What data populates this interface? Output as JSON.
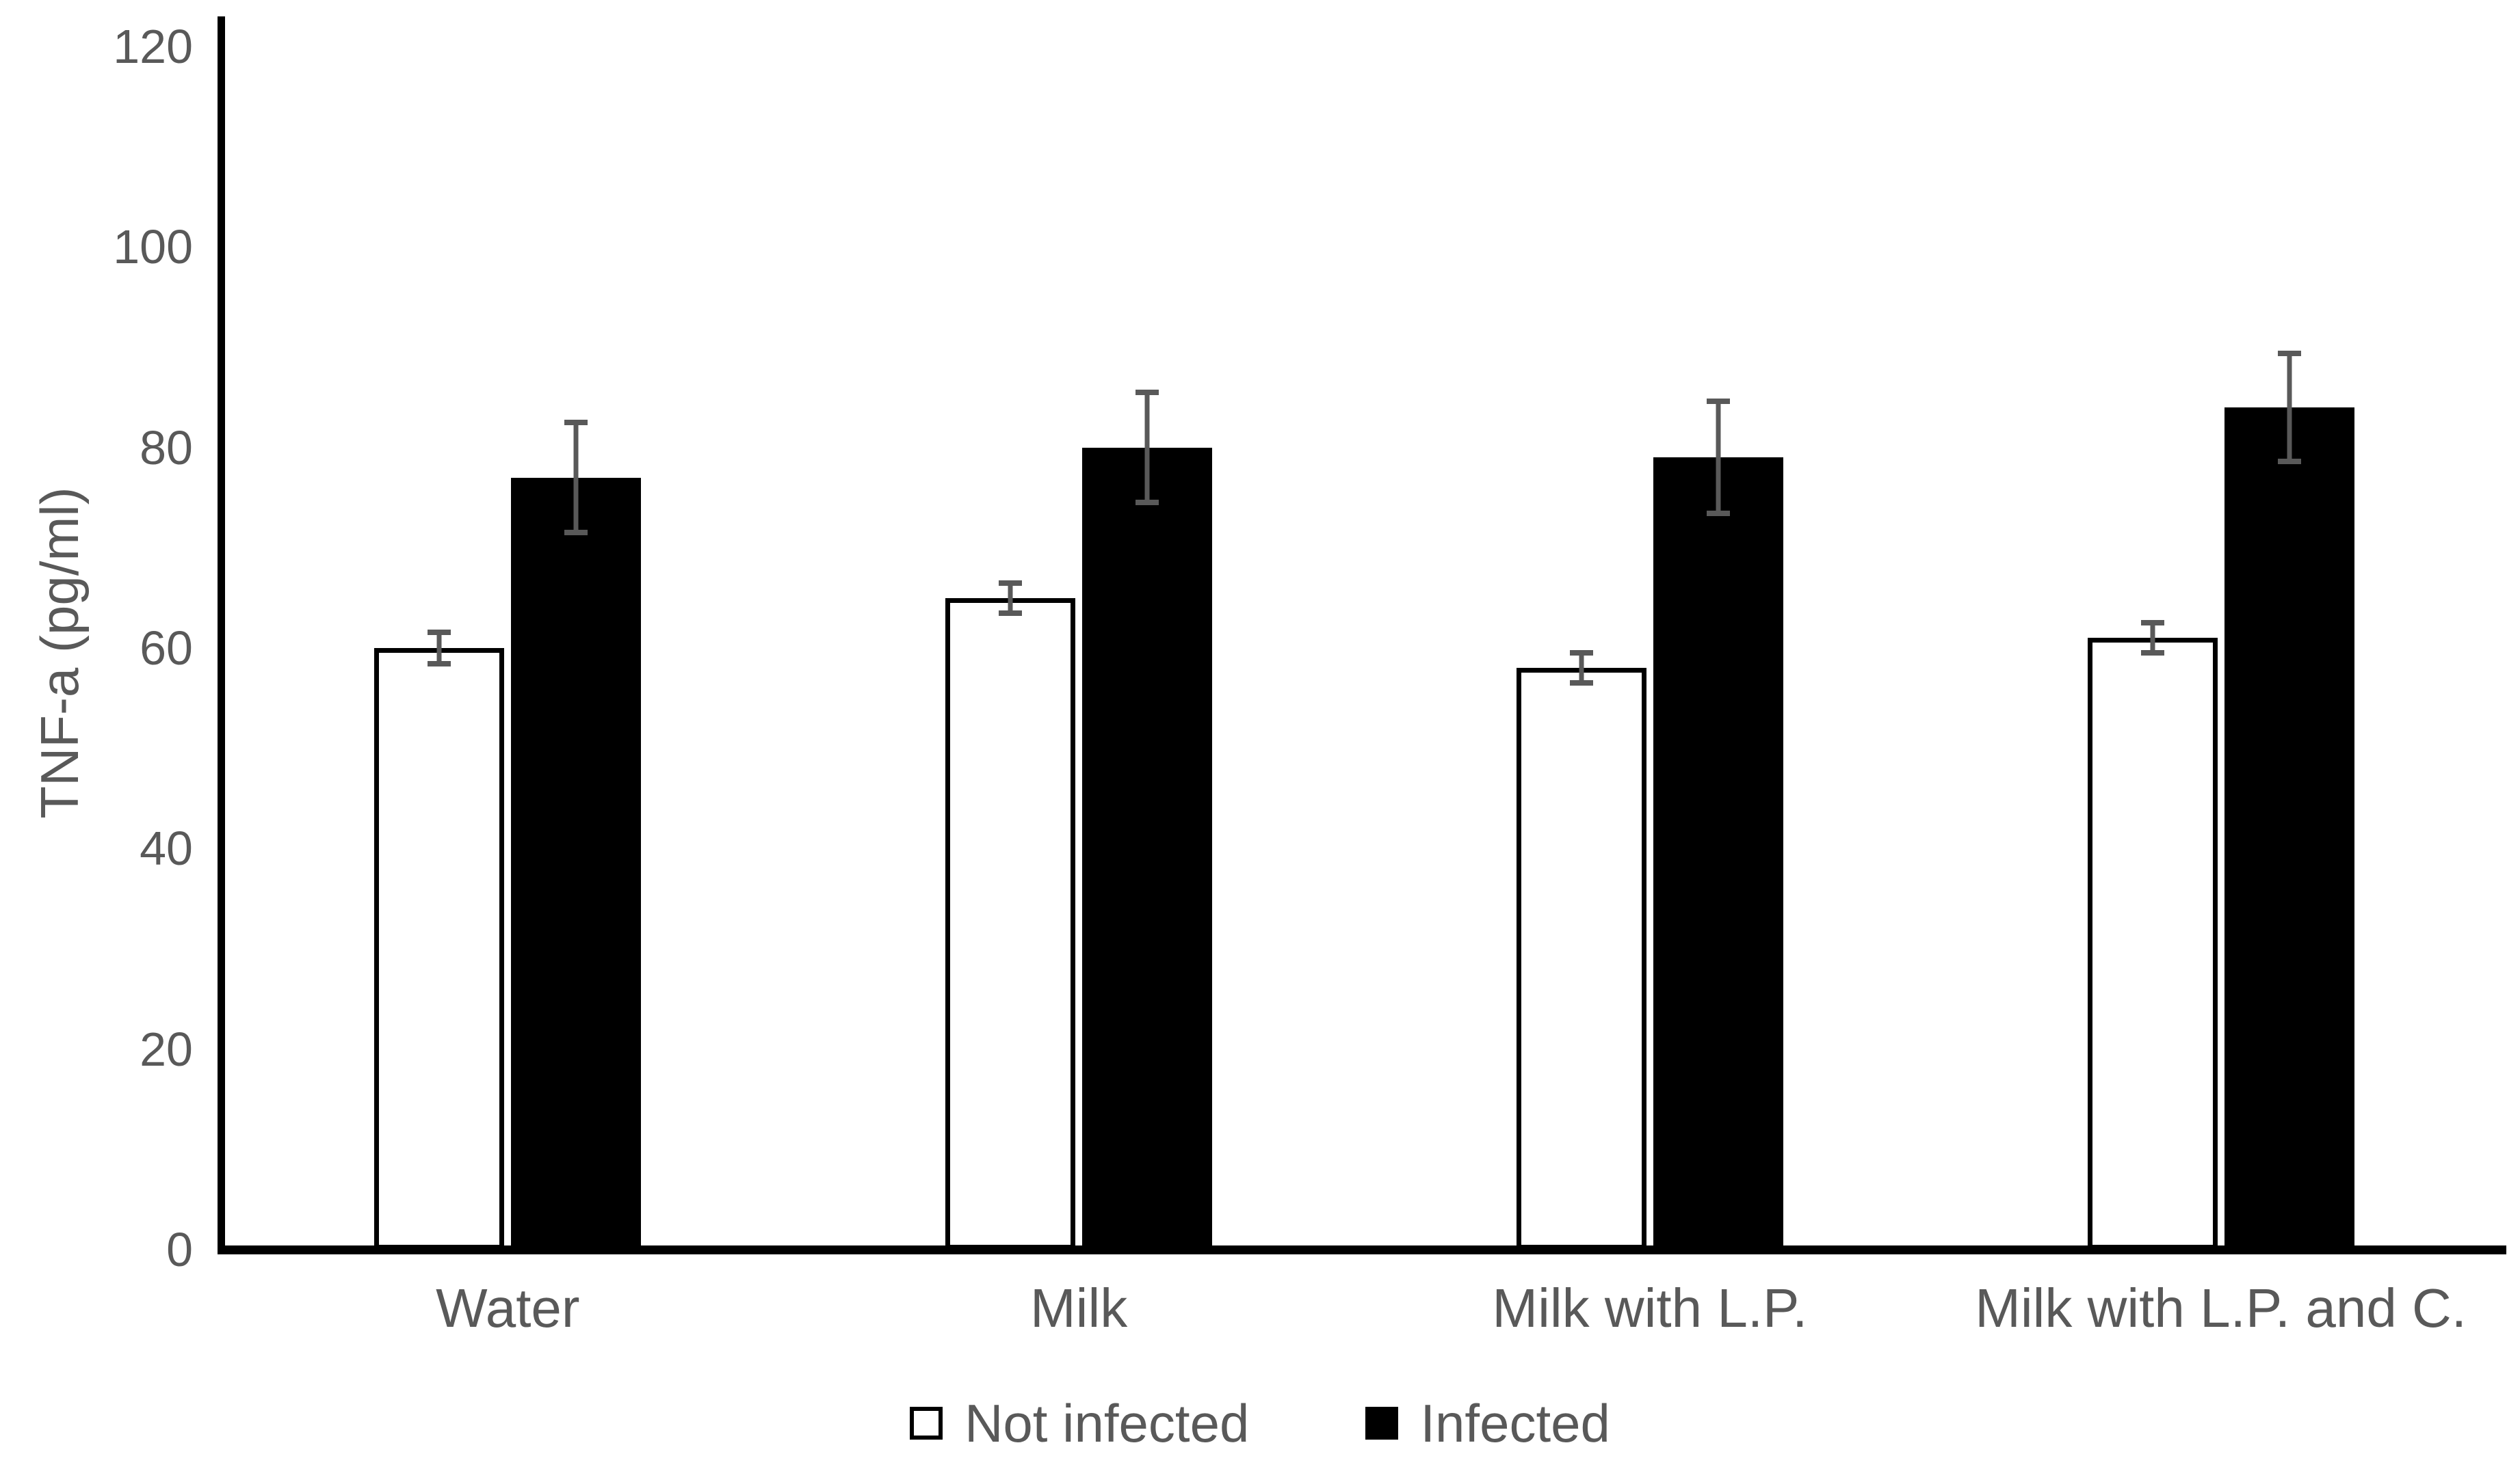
{
  "chart_data": {
    "type": "bar",
    "title": "",
    "categories": [
      "Water",
      "Milk",
      "Milk with L.P.",
      "Milk with L.P. and C."
    ],
    "series": [
      {
        "name": "Not infected",
        "values": [
          60,
          65,
          58,
          61
        ],
        "errors": [
          1.6,
          1.5,
          1.5,
          1.5
        ],
        "fill": "#ffffff",
        "stroke": "#000000"
      },
      {
        "name": "Infected",
        "values": [
          77,
          80,
          79,
          84
        ],
        "errors": [
          5.5,
          5.5,
          5.6,
          5.4
        ],
        "fill": "#000000",
        "stroke": "#000000"
      }
    ],
    "xlabel": "",
    "ylabel": "TNF-a (pg/ml)",
    "ylim": [
      0,
      120
    ],
    "yticks": [
      0,
      20,
      40,
      60,
      80,
      100,
      120
    ],
    "grid": false,
    "legend_position": "bottom",
    "axis_color": "#000000",
    "error_bar_color": "#595959",
    "text_color": "#595959",
    "background_color": "#ffffff"
  }
}
